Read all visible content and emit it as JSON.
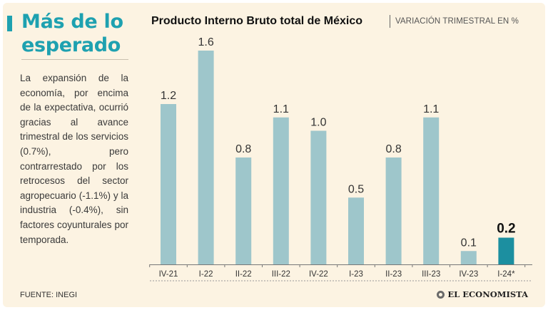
{
  "headline": "Más de lo esperado",
  "body_text": "La expansión de la economía, por encima de la expectativa, ocurrió gracias al avance trimestral de los servicios (0.7%), pero contrarrestado por los retrocesos del sector agropecuario (-1.1%) y la industria (-0.4%), sin factores coyunturales por temporada.",
  "footer": {
    "source": "FUENTE: INEGI",
    "brand": "EL ECONOMISTA"
  },
  "colors": {
    "accent": "#1ea1b0",
    "bar": "#9ec6cb",
    "highlight_bar": "#1c8fa0",
    "background": "#fcf3e2"
  },
  "chart_data": {
    "type": "bar",
    "title": "Producto Interno Bruto total de México",
    "subtitle": "VARIACIÓN TRIMESTRAL EN %",
    "categories": [
      "IV-21",
      "I-22",
      "II-22",
      "III-22",
      "IV-22",
      "I-23",
      "II-23",
      "III-23",
      "IV-23",
      "I-24*"
    ],
    "values": [
      1.2,
      1.6,
      0.8,
      1.1,
      1.0,
      0.5,
      0.8,
      1.1,
      0.1,
      0.2
    ],
    "data_labels": [
      "1.2",
      "1.6",
      "0.8",
      "1.1",
      "1.0",
      "0.5",
      "0.8",
      "1.1",
      "0.1",
      "0.2"
    ],
    "highlight_index": 9,
    "ylim": [
      0,
      1.6
    ],
    "grid": false,
    "xlabel": "",
    "ylabel": ""
  }
}
